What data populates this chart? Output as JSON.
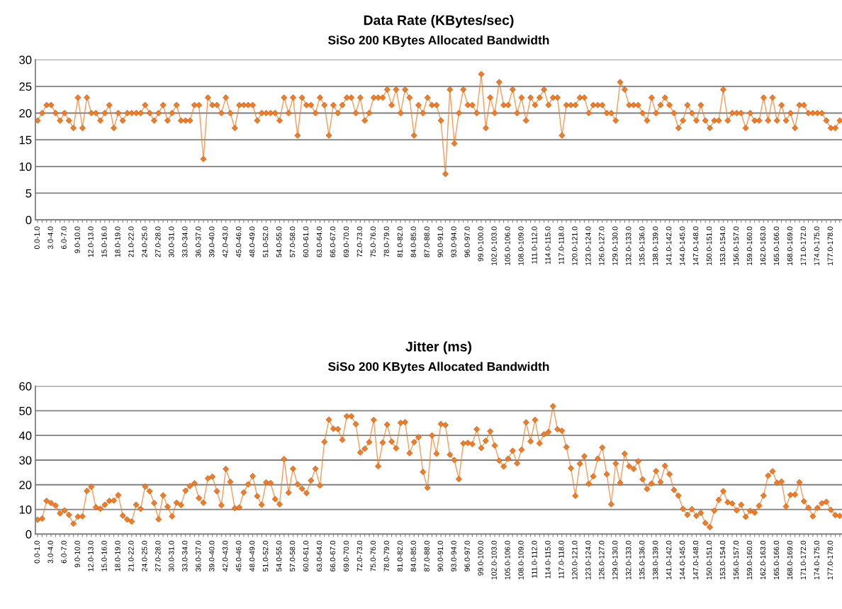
{
  "chart_data": [
    {
      "type": "line",
      "title": "Data Rate (KBytes/sec)",
      "subtitle": "SiSo 200 KBytes Allocated Bandwidth",
      "categories": [
        "0.0-1.0",
        null,
        null,
        "3.0-4.0",
        null,
        null,
        "6.0-7.0",
        null,
        null,
        "9.0-10.0",
        null,
        null,
        "12.0-13.0",
        null,
        null,
        "15.0-16.0",
        null,
        null,
        "18.0-19.0",
        null,
        null,
        "21.0-22.0",
        null,
        null,
        "24.0-25.0",
        null,
        null,
        "27.0-28.0",
        null,
        null,
        "30.0-31.0",
        null,
        null,
        "33.0-34.0",
        null,
        null,
        "36.0-37.0",
        null,
        null,
        "39.0-40.0",
        null,
        null,
        "42.0-43.0",
        null,
        null,
        "45.0-46.0",
        null,
        null,
        "48.0-49.0",
        null,
        null,
        "51.0-52.0",
        null,
        null,
        "54.0-55.0",
        null,
        null,
        "57.0-58.0",
        null,
        null,
        "60.0-61.0",
        null,
        null,
        "63.0-64.0",
        null,
        null,
        "66.0-67.0",
        null,
        null,
        "69.0-70.0",
        null,
        null,
        "72.0-73.0",
        null,
        null,
        "75.0-76.0",
        null,
        null,
        "78.0-79.0",
        null,
        null,
        "81.0-82.0",
        null,
        null,
        "84.0-85.0",
        null,
        null,
        "87.0-88.0",
        null,
        null,
        "90.0-91.0",
        null,
        null,
        "93.0-94.0",
        null,
        null,
        "96.0-97.0",
        null,
        null,
        "99.0-100.0",
        null,
        null,
        "102.0-103.0",
        null,
        null,
        "105.0-106.0",
        null,
        null,
        "108.0-109.0",
        null,
        null,
        "111.0-112.0",
        null,
        null,
        "114.0-115.0",
        null,
        null,
        "117.0-118.0",
        null,
        null,
        "120.0-121.0",
        null,
        null,
        "123.0-124.0",
        null,
        null,
        "126.0-127.0",
        null,
        null,
        "129.0-130.0",
        null,
        null,
        "132.0-133.0",
        null,
        null,
        "135.0-136.0",
        null,
        null,
        "138.0-139.0",
        null,
        null,
        "141.0-142.0",
        null,
        null,
        "144.0-145.0",
        null,
        null,
        "147.0-148.0",
        null,
        null,
        "150.0-151.0",
        null,
        null,
        "153.0-154.0",
        null,
        null,
        "156.0-157.0",
        null,
        null,
        "159.0-160.0",
        null,
        null,
        "162.0-163.0",
        null,
        null,
        "165.0-166.0",
        null,
        null,
        "168.0-169.0",
        null,
        null,
        "171.0-172.0",
        null,
        null,
        "174.0-175.0",
        null,
        null,
        "177.0-178.0",
        null,
        null
      ],
      "series": [
        {
          "color": "#f47b20",
          "values": [
            18.6,
            20,
            21.5,
            21.5,
            20,
            18.6,
            20,
            18.6,
            17.2,
            22.9,
            17.2,
            22.9,
            20,
            20,
            18.6,
            20,
            21.5,
            17.2,
            20,
            18.6,
            20,
            20,
            20,
            20,
            21.5,
            20,
            18.6,
            20,
            21.5,
            18.6,
            20,
            21.5,
            18.6,
            18.6,
            18.6,
            21.5,
            21.5,
            11.4,
            22.9,
            21.5,
            21.5,
            20,
            22.9,
            20,
            17.2,
            21.5,
            21.5,
            21.5,
            21.5,
            18.6,
            20,
            20,
            20,
            20,
            18.6,
            22.9,
            20,
            22.9,
            15.8,
            22.9,
            21.5,
            21.5,
            20,
            22.9,
            21.5,
            15.8,
            21.5,
            20,
            21.5,
            22.9,
            22.9,
            20,
            22.9,
            18.6,
            20,
            22.9,
            22.9,
            22.9,
            24.4,
            21.5,
            24.4,
            20,
            24.4,
            22.9,
            15.8,
            21.5,
            20,
            22.9,
            21.5,
            21.5,
            18.6,
            8.6,
            24.4,
            14.3,
            20,
            24.4,
            21.5,
            21.5,
            20,
            27.3,
            17.2,
            22.9,
            20,
            25.8,
            21.5,
            21.5,
            24.4,
            20,
            22.9,
            18.6,
            22.9,
            21.5,
            22.9,
            24.4,
            21.5,
            22.9,
            22.9,
            15.8,
            21.5,
            21.5,
            21.5,
            22.9,
            22.9,
            20,
            21.5,
            21.5,
            21.5,
            20,
            20,
            18.6,
            25.8,
            24.4,
            21.5,
            21.5,
            21.5,
            20,
            18.6,
            22.9,
            20,
            21.5,
            22.9,
            21.5,
            20,
            17.2,
            18.6,
            21.5,
            20,
            18.6,
            21.5,
            18.6,
            17.2,
            18.6,
            18.6,
            24.4,
            18.6,
            20,
            20,
            20,
            17.2,
            20,
            18.6,
            18.6,
            22.9,
            18.6,
            22.9,
            18.6,
            21.5,
            18.6,
            20,
            17.2,
            21.5,
            21.5,
            20,
            20,
            20,
            20,
            18.6,
            17.2,
            17.2,
            18.6
          ]
        }
      ],
      "ylim": [
        0,
        30
      ],
      "yticks": [
        0,
        5,
        10,
        15,
        20,
        25,
        30
      ],
      "grid": "y",
      "marker": "diamond",
      "line_style": "solid"
    },
    {
      "type": "line",
      "title": "Jitter (ms)",
      "subtitle": "SiSo 200 KBytes Allocated Bandwidth",
      "categories": [
        "0.0-1.0",
        null,
        null,
        "3.0-4.0",
        null,
        null,
        "6.0-7.0",
        null,
        null,
        "9.0-10.0",
        null,
        null,
        "12.0-13.0",
        null,
        null,
        "15.0-16.0",
        null,
        null,
        "18.0-19.0",
        null,
        null,
        "21.0-22.0",
        null,
        null,
        "24.0-25.0",
        null,
        null,
        "27.0-28.0",
        null,
        null,
        "30.0-31.0",
        null,
        null,
        "33.0-34.0",
        null,
        null,
        "36.0-37.0",
        null,
        null,
        "39.0-40.0",
        null,
        null,
        "42.0-43.0",
        null,
        null,
        "45.0-46.0",
        null,
        null,
        "48.0-49.0",
        null,
        null,
        "51.0-52.0",
        null,
        null,
        "54.0-55.0",
        null,
        null,
        "57.0-58.0",
        null,
        null,
        "60.0-61.0",
        null,
        null,
        "63.0-64.0",
        null,
        null,
        "66.0-67.0",
        null,
        null,
        "69.0-70.0",
        null,
        null,
        "72.0-73.0",
        null,
        null,
        "75.0-76.0",
        null,
        null,
        "78.0-79.0",
        null,
        null,
        "81.0-82.0",
        null,
        null,
        "84.0-85.0",
        null,
        null,
        "87.0-88.0",
        null,
        null,
        "90.0-91.0",
        null,
        null,
        "93.0-94.0",
        null,
        null,
        "96.0-97.0",
        null,
        null,
        "99.0-100.0",
        null,
        null,
        "102.0-103.0",
        null,
        null,
        "105.0-106.0",
        null,
        null,
        "108.0-109.0",
        null,
        null,
        "111.0-112.0",
        null,
        null,
        "114.0-115.0",
        null,
        null,
        "117.0-118.0",
        null,
        null,
        "120.0-121.0",
        null,
        null,
        "123.0-124.0",
        null,
        null,
        "126.0-127.0",
        null,
        null,
        "129.0-130.0",
        null,
        null,
        "132.0-133.0",
        null,
        null,
        "135.0-136.0",
        null,
        null,
        "138.0-139.0",
        null,
        null,
        "141.0-142.0",
        null,
        null,
        "144.0-145.0",
        null,
        null,
        "147.0-148.0",
        null,
        null,
        "150.0-151.0",
        null,
        null,
        "153.0-154.0",
        null,
        null,
        "156.0-157.0",
        null,
        null,
        "159.0-160.0",
        null,
        null,
        "162.0-163.0",
        null,
        null,
        "165.0-166.0",
        null,
        null,
        "168.0-169.0",
        null,
        null,
        "171.0-172.0",
        null,
        null,
        "174.0-175.0",
        null,
        null,
        "177.0-178.0",
        null,
        null
      ],
      "series": [
        {
          "color": "#f47b20",
          "values": [
            5.8,
            6.3,
            13.5,
            12.6,
            11.6,
            8.4,
            9.6,
            7.8,
            4.2,
            7.1,
            7.2,
            17.5,
            19.2,
            10.9,
            10.3,
            11.9,
            13.5,
            13.6,
            15.8,
            7.5,
            5.9,
            5.1,
            11.9,
            10.2,
            19.3,
            17.4,
            12.6,
            6.0,
            15.7,
            11.1,
            7.2,
            12.7,
            11.8,
            17.6,
            19.5,
            20.6,
            14.6,
            12.7,
            22.6,
            23.3,
            17.4,
            11.7,
            26.4,
            21.2,
            10.5,
            10.8,
            16.9,
            20.2,
            23.5,
            15.4,
            11.9,
            21.0,
            20.7,
            14.2,
            12.1,
            30.4,
            16.8,
            26.5,
            20.2,
            18.4,
            16.6,
            21.7,
            26.5,
            19.7,
            37.4,
            46.4,
            42.7,
            42.6,
            38.2,
            47.8,
            47.8,
            44.6,
            33.1,
            34.6,
            37.3,
            46.3,
            27.5,
            37.1,
            44.4,
            37.5,
            34.8,
            45.1,
            45.4,
            32.8,
            37.3,
            39.3,
            25.2,
            18.8,
            40.0,
            32.6,
            44.6,
            44.2,
            32.2,
            30.0,
            22.3,
            36.8,
            37.0,
            36.5,
            42.5,
            34.9,
            37.8,
            41.7,
            35.9,
            29.8,
            27.4,
            30.6,
            33.8,
            28.7,
            34.2,
            45.3,
            37.6,
            46.3,
            36.8,
            40.5,
            41.4,
            51.9,
            42.5,
            41.9,
            35.3,
            26.7,
            15.5,
            28.5,
            31.6,
            20.4,
            23.4,
            30.6,
            35.1,
            24.3,
            12.1,
            28.6,
            20.8,
            32.6,
            27.5,
            26.4,
            29.5,
            22.2,
            18.3,
            20.5,
            25.6,
            21.1,
            27.7,
            24.3,
            17.9,
            15.6,
            10.2,
            7.8,
            10.1,
            7.4,
            8.6,
            4.5,
            2.8,
            9.5,
            13.9,
            17.4,
            12.9,
            12.4,
            9.6,
            11.9,
            7.0,
            9.4,
            8.7,
            11.5,
            15.6,
            23.7,
            25.5,
            20.8,
            21.3,
            11.2,
            15.9,
            16.0,
            21.0,
            13.3,
            10.7,
            7.2,
            10.6,
            12.5,
            13.1,
            9.8,
            7.7,
            7.4
          ]
        }
      ],
      "ylim": [
        0,
        60
      ],
      "yticks": [
        0,
        10,
        20,
        30,
        40,
        50,
        60
      ],
      "grid": "y",
      "marker": "diamond",
      "line_style": "solid"
    }
  ]
}
